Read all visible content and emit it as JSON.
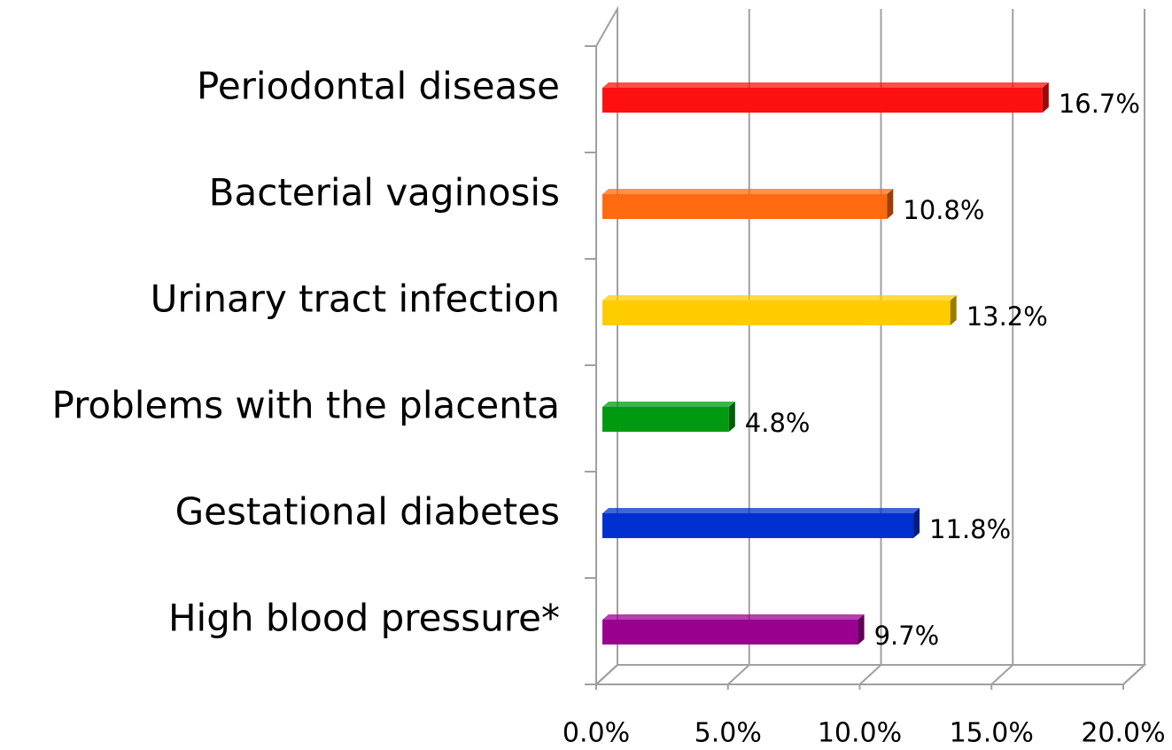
{
  "chart_data": {
    "type": "bar",
    "orientation": "horizontal",
    "categories": [
      "Periodontal disease",
      "Bacterial vaginosis",
      "Urinary tract infection",
      "Problems with the placenta",
      "Gestational diabetes",
      "High blood pressure*"
    ],
    "values": [
      16.7,
      10.8,
      13.2,
      4.8,
      11.8,
      9.7
    ],
    "value_labels": [
      "16.7%",
      "10.8%",
      "13.2%",
      "4.8%",
      "11.8%",
      "9.7%"
    ],
    "colors": [
      "#ff1010",
      "#ff6a10",
      "#ffcc00",
      "#009a10",
      "#0030d0",
      "#9a0090"
    ],
    "xlim": [
      0,
      20
    ],
    "xticks": [
      {
        "value": 0,
        "label": "0.0%"
      },
      {
        "value": 5,
        "label": "5.0%"
      },
      {
        "value": 10,
        "label": "10.0%"
      },
      {
        "value": 15,
        "label": "15.0%"
      },
      {
        "value": 20,
        "label": "20.0%"
      }
    ],
    "grid": true
  }
}
